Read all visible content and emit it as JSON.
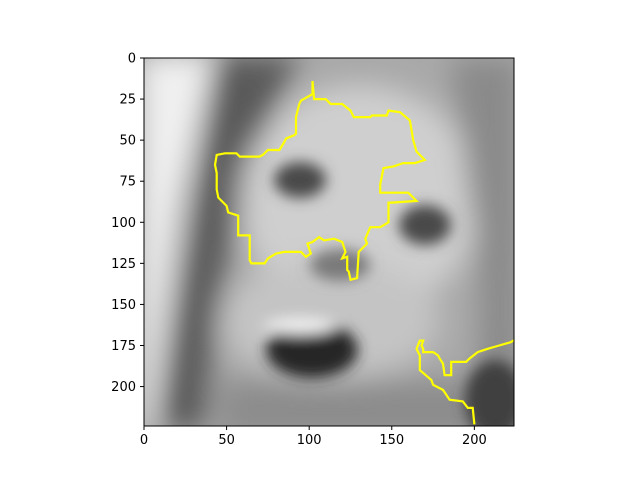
{
  "chart_data": {
    "type": "heatmap",
    "title": "",
    "xlabel": "",
    "ylabel": "",
    "xlim": [
      0,
      224
    ],
    "ylim": [
      224,
      0
    ],
    "colormap": "gray",
    "x_ticks": [
      0,
      50,
      100,
      150,
      200
    ],
    "y_ticks": [
      0,
      25,
      50,
      75,
      100,
      125,
      150,
      175,
      200
    ],
    "x_tick_labels": [
      "0",
      "50",
      "100",
      "150",
      "200"
    ],
    "y_tick_labels": [
      "0",
      "25",
      "50",
      "75",
      "100",
      "125",
      "150",
      "175",
      "200"
    ],
    "overlay_color": "#ffff00",
    "contours": [
      {
        "points": [
          [
            102,
            14
          ],
          [
            103,
            25
          ],
          [
            110,
            25
          ],
          [
            113,
            28
          ],
          [
            120,
            28
          ],
          [
            125,
            32
          ],
          [
            127,
            36
          ],
          [
            137,
            36
          ],
          [
            138,
            35
          ],
          [
            147,
            35
          ],
          [
            148,
            32
          ],
          [
            155,
            33
          ],
          [
            161,
            38
          ],
          [
            163,
            50
          ],
          [
            165,
            57
          ],
          [
            170,
            62
          ],
          [
            164,
            64
          ],
          [
            157,
            64
          ],
          [
            151,
            66
          ],
          [
            145,
            67
          ],
          [
            143,
            77
          ],
          [
            143,
            82
          ],
          [
            155,
            82
          ],
          [
            157,
            82
          ],
          [
            160,
            82
          ],
          [
            165,
            87
          ],
          [
            150,
            88
          ],
          [
            148,
            88
          ],
          [
            148,
            100
          ],
          [
            143,
            103
          ],
          [
            137,
            103
          ],
          [
            134,
            110
          ],
          [
            135,
            113
          ],
          [
            130,
            118
          ],
          [
            129,
            134
          ],
          [
            125,
            135
          ],
          [
            124,
            130
          ],
          [
            123,
            129
          ],
          [
            123,
            121
          ],
          [
            120,
            122
          ],
          [
            122,
            118
          ],
          [
            120,
            112
          ],
          [
            115,
            110
          ],
          [
            109,
            111
          ],
          [
            106,
            109
          ],
          [
            102,
            112
          ],
          [
            99,
            113
          ],
          [
            101,
            119
          ],
          [
            98,
            121
          ],
          [
            95,
            118
          ],
          [
            85,
            118
          ],
          [
            80,
            119
          ],
          [
            75,
            122
          ],
          [
            73,
            125
          ],
          [
            65,
            125
          ],
          [
            64,
            123
          ],
          [
            64,
            108
          ],
          [
            57,
            108
          ],
          [
            57,
            96
          ],
          [
            51,
            94
          ],
          [
            50,
            90
          ],
          [
            45,
            85
          ],
          [
            44,
            80
          ],
          [
            44,
            70
          ],
          [
            43,
            65
          ],
          [
            44,
            59
          ],
          [
            49,
            58
          ],
          [
            56,
            58
          ],
          [
            58,
            60
          ],
          [
            70,
            60
          ],
          [
            72,
            59
          ],
          [
            75,
            56
          ],
          [
            82,
            56
          ],
          [
            85,
            51
          ],
          [
            86,
            49
          ],
          [
            91,
            47
          ],
          [
            92,
            46
          ],
          [
            92,
            36
          ],
          [
            93,
            32
          ],
          [
            94,
            28
          ],
          [
            95,
            26
          ],
          [
            102,
            22
          ],
          [
            102,
            14
          ]
        ]
      },
      {
        "points": [
          [
            227,
            170
          ],
          [
            222,
            173
          ],
          [
            215,
            175
          ],
          [
            208,
            177
          ],
          [
            202,
            179
          ],
          [
            197,
            183
          ],
          [
            195,
            185
          ],
          [
            186,
            185
          ],
          [
            186,
            193
          ],
          [
            182,
            193
          ],
          [
            181,
            186
          ],
          [
            179,
            183
          ],
          [
            178,
            181
          ],
          [
            175,
            179
          ],
          [
            169,
            179
          ],
          [
            169,
            177
          ],
          [
            168,
            175
          ],
          [
            169,
            172
          ],
          [
            167,
            172
          ],
          [
            165,
            177
          ],
          [
            167,
            181
          ],
          [
            167,
            190
          ],
          [
            174,
            196
          ],
          [
            175,
            199
          ],
          [
            181,
            202
          ],
          [
            185,
            208
          ],
          [
            193,
            209
          ],
          [
            196,
            213
          ],
          [
            199,
            213
          ],
          [
            200,
            223
          ]
        ]
      }
    ]
  }
}
